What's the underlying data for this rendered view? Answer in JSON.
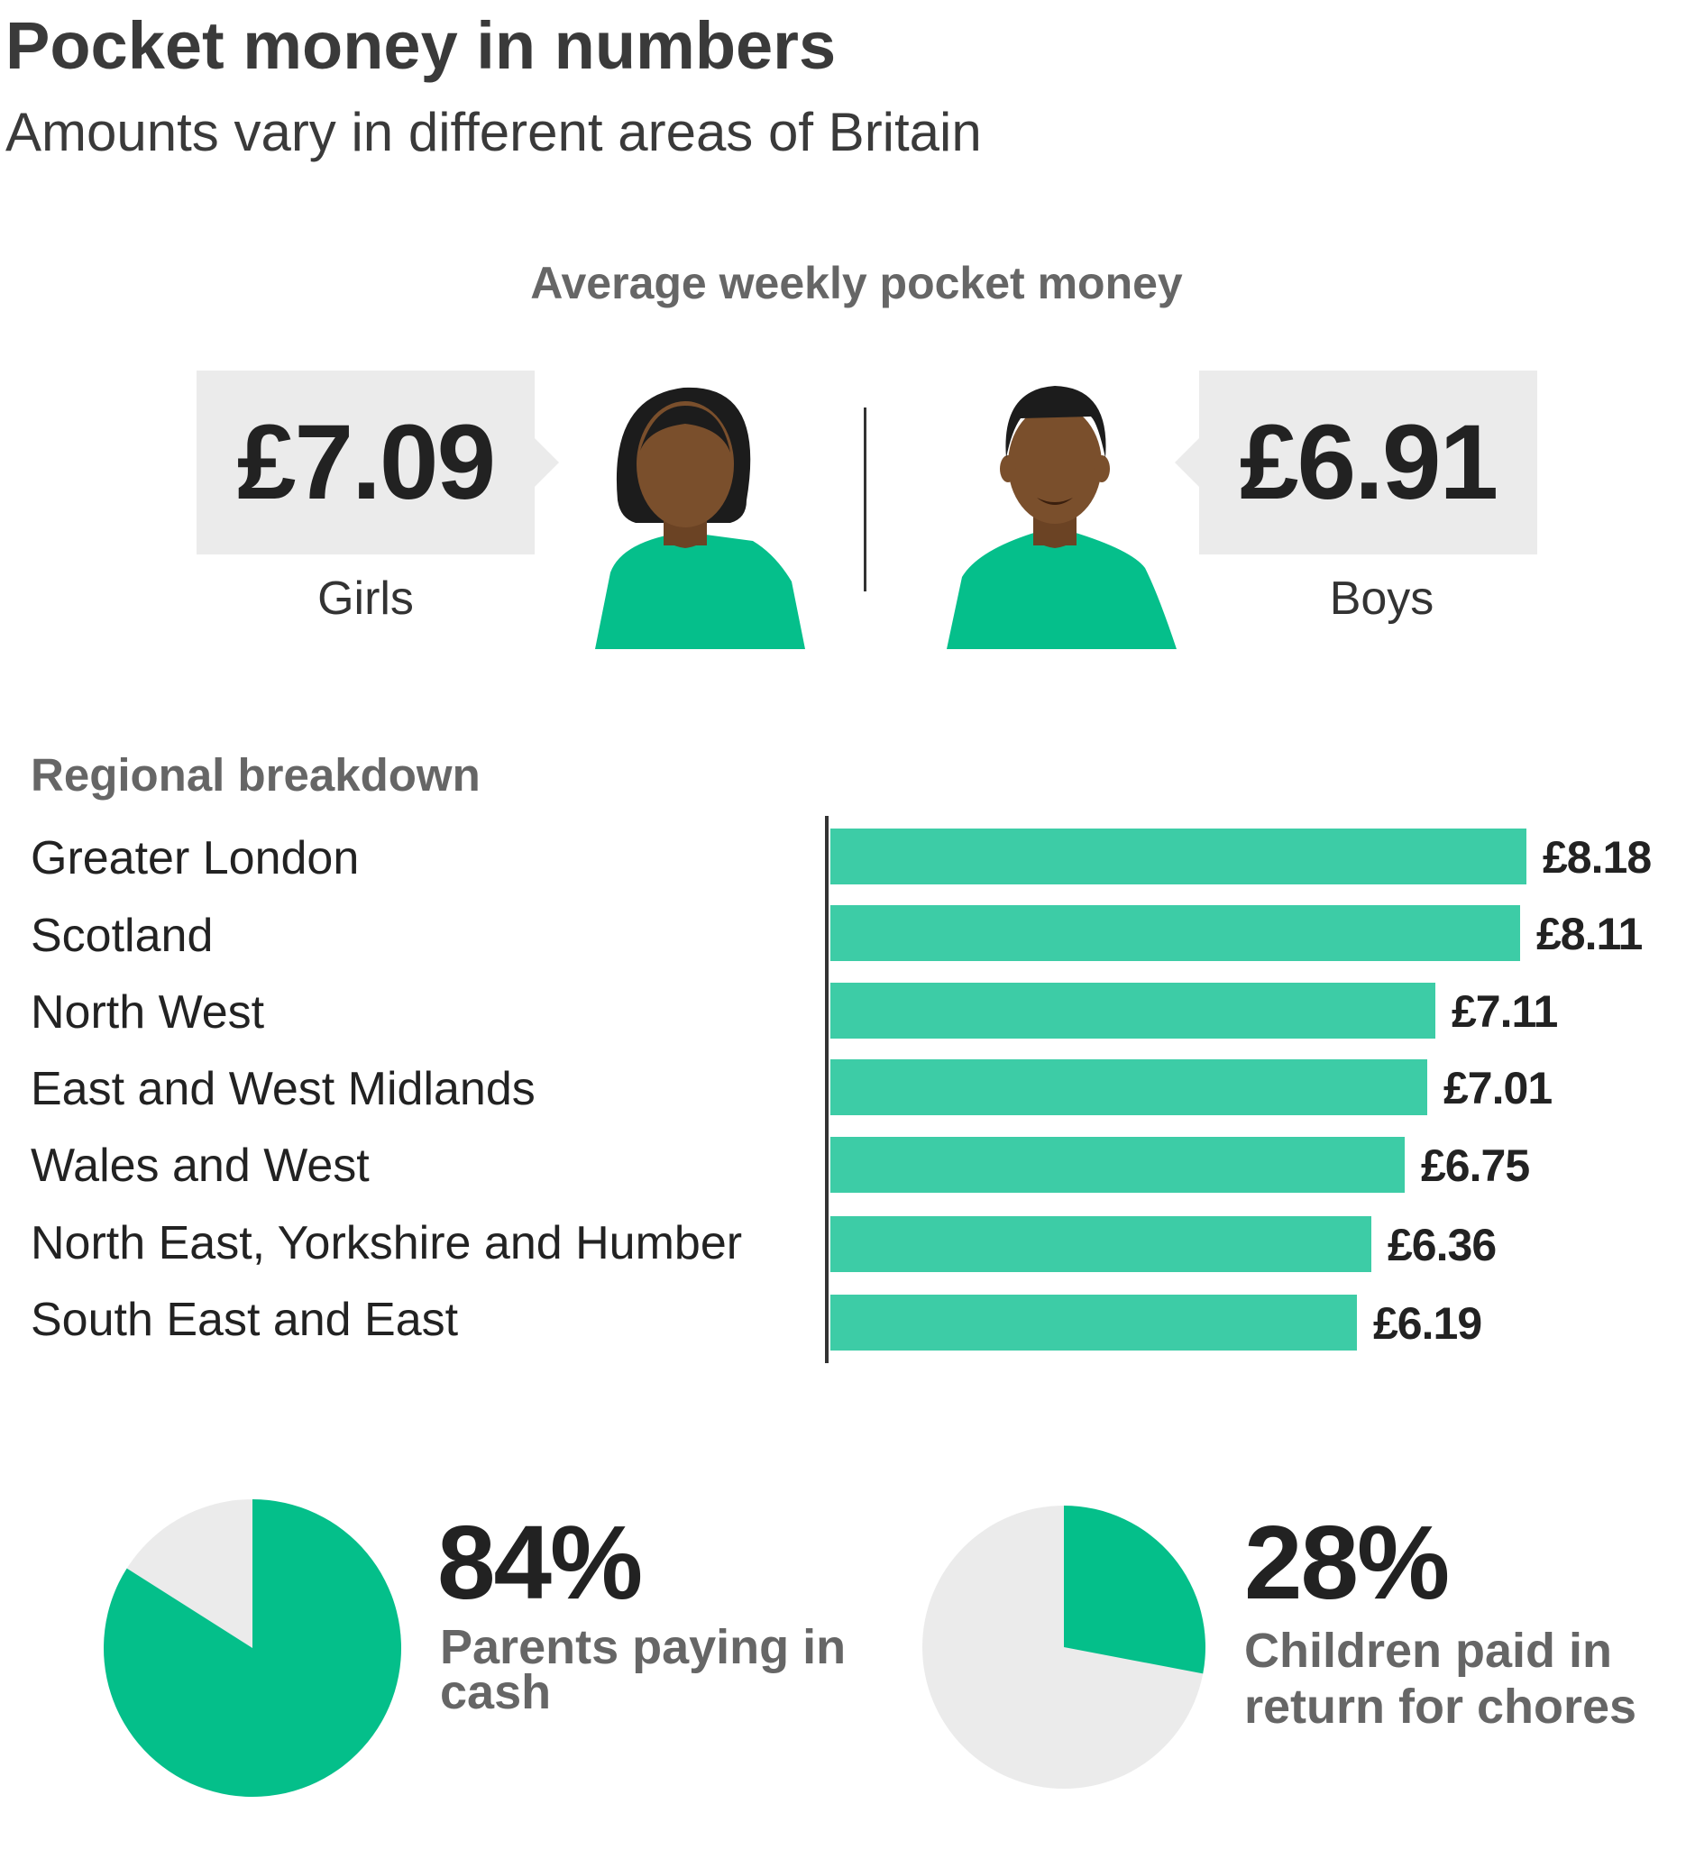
{
  "header": {
    "title": "Pocket money in numbers",
    "subtitle": "Amounts vary in different areas of Britain"
  },
  "average": {
    "title": "Average weekly pocket money",
    "girls": {
      "amount": "£7.09",
      "label": "Girls"
    },
    "boys": {
      "amount": "£6.91",
      "label": "Boys"
    }
  },
  "colors": {
    "bar": "#3dcca6",
    "pie_fill": "#04bf8a",
    "pie_rest": "#ebebeb",
    "shirt": "#05bf8b",
    "skin": "#7a4f2c",
    "hair": "#1c1c1c"
  },
  "chart_data": [
    {
      "type": "bar",
      "title": "Regional breakdown",
      "orientation": "horizontal",
      "categories": [
        "Greater London",
        "Scotland",
        "North West",
        "East and West Midlands",
        "Wales and West",
        "North East, Yorkshire and Humber",
        "South East and East"
      ],
      "values": [
        8.18,
        8.11,
        7.11,
        7.01,
        6.75,
        6.36,
        6.19
      ],
      "value_labels": [
        "£8.18",
        "£8.11",
        "£7.11",
        "£7.01",
        "£6.75",
        "£6.36",
        "£6.19"
      ],
      "xlim": [
        0,
        8.18
      ]
    },
    {
      "type": "pie",
      "value": 84,
      "display": "84%",
      "label": "Parents paying in cash"
    },
    {
      "type": "pie",
      "value": 28,
      "display": "28%",
      "label": "Children paid in return for chores"
    }
  ]
}
